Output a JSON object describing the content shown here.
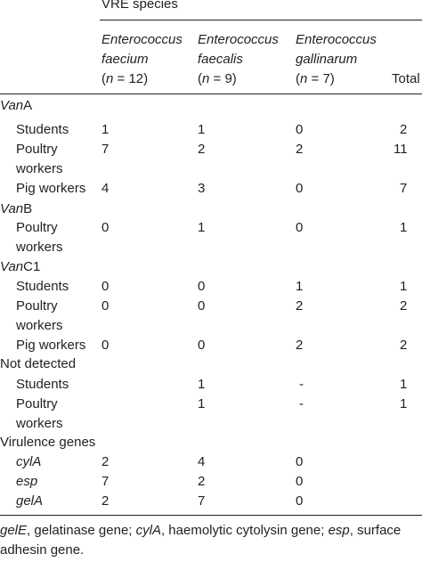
{
  "header": {
    "group_label": "VRE species",
    "columns": [
      {
        "genus": "Enterococcus",
        "species": "faecium",
        "n_label": "n",
        "n_value": " = 12)"
      },
      {
        "genus": "Enterococcus",
        "species": "faecalis",
        "n_label": "n",
        "n_value": " = 9)"
      },
      {
        "genus": "Enterococcus",
        "species": "gallinarum",
        "n_label": "n",
        "n_value": " = 7)"
      }
    ],
    "total_label": "Total"
  },
  "sections": [
    {
      "title_italic": "Van",
      "title_rest": "A"
    },
    {
      "title_italic": "Van",
      "title_rest": "B"
    },
    {
      "title_italic": "Van",
      "title_rest": "C1"
    },
    {
      "title_plain": "Not detected"
    },
    {
      "title_plain": "Virulence genes"
    }
  ],
  "rows": [
    {
      "label": "Students",
      "c1": "1",
      "c2": "1",
      "c3": "0",
      "total": "2"
    },
    {
      "label1": "Poultry",
      "label2": "workers",
      "c1": "7",
      "c2": "2",
      "c3": "2",
      "total": "11"
    },
    {
      "label": "Pig workers",
      "c1": "4",
      "c2": "3",
      "c3": "0",
      "total": "7"
    },
    {
      "label1": "Poultry",
      "label2": "workers",
      "c1": "0",
      "c2": "1",
      "c3": "0",
      "total": "1"
    },
    {
      "label": "Students",
      "c1": "0",
      "c2": "0",
      "c3": "1",
      "total": "1"
    },
    {
      "label1": "Poultry",
      "label2": "workers",
      "c1": "0",
      "c2": "0",
      "c3": "2",
      "total": "2"
    },
    {
      "label": "Pig workers",
      "c1": "0",
      "c2": "0",
      "c3": "2",
      "total": "2"
    },
    {
      "label": "Students",
      "c1": "",
      "c2": "1",
      "c3": "-",
      "total": "1"
    },
    {
      "label1": "Poultry",
      "label2": "workers",
      "c1": "",
      "c2": "1",
      "c3": "-",
      "total": "1"
    },
    {
      "label": "cylA",
      "c1": "2",
      "c2": "4",
      "c3": "0",
      "total": ""
    },
    {
      "label": "esp",
      "c1": "7",
      "c2": "2",
      "c3": "0",
      "total": ""
    },
    {
      "label": "gelA",
      "c1": "2",
      "c2": "7",
      "c3": "0",
      "total": ""
    }
  ],
  "footnote": {
    "p1_italic": "gelE",
    "p2": ", gelatinase gene; ",
    "p3_italic": "cylA",
    "p4": ", haemolytic cytolysin gene; ",
    "p5_italic": "esp",
    "p6": ", surface",
    "line2": "adhesin gene."
  }
}
